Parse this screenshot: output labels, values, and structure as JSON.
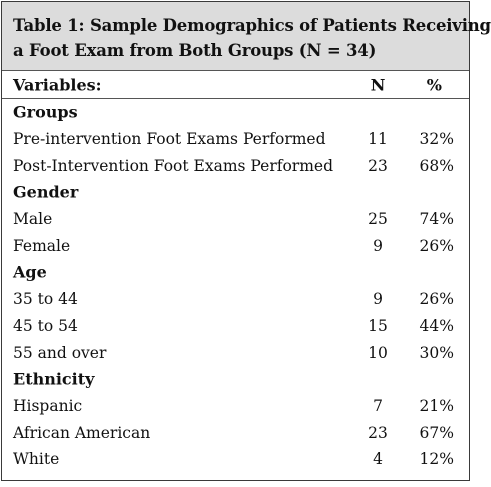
{
  "table": {
    "caption_line1": "Table 1: Sample Demographics of Patients Receiving",
    "caption_line2": "a Foot Exam from Both Groups (N = 34)",
    "header": {
      "variables": "Variables:",
      "n": "N",
      "pct": "%"
    },
    "groups": [
      {
        "title": "Groups",
        "rows": [
          {
            "label": "Pre-intervention Foot Exams Performed",
            "n": "11",
            "pct": "32%"
          },
          {
            "label": "Post-Intervention Foot Exams Performed",
            "n": "23",
            "pct": "68%"
          }
        ]
      },
      {
        "title": "Gender",
        "rows": [
          {
            "label": "Male",
            "n": "25",
            "pct": "74%"
          },
          {
            "label": "Female",
            "n": "9",
            "pct": "26%"
          }
        ]
      },
      {
        "title": "Age",
        "rows": [
          {
            "label": "35 to 44",
            "n": "9",
            "pct": "26%"
          },
          {
            "label": "45 to 54",
            "n": "15",
            "pct": "44%"
          },
          {
            "label": "55 and over",
            "n": "10",
            "pct": "30%"
          }
        ]
      },
      {
        "title": "Ethnicity",
        "rows": [
          {
            "label": "Hispanic",
            "n": "7",
            "pct": "21%"
          },
          {
            "label": "African American",
            "n": "23",
            "pct": "67%"
          },
          {
            "label": "White",
            "n": "4",
            "pct": "12%"
          }
        ]
      }
    ]
  }
}
